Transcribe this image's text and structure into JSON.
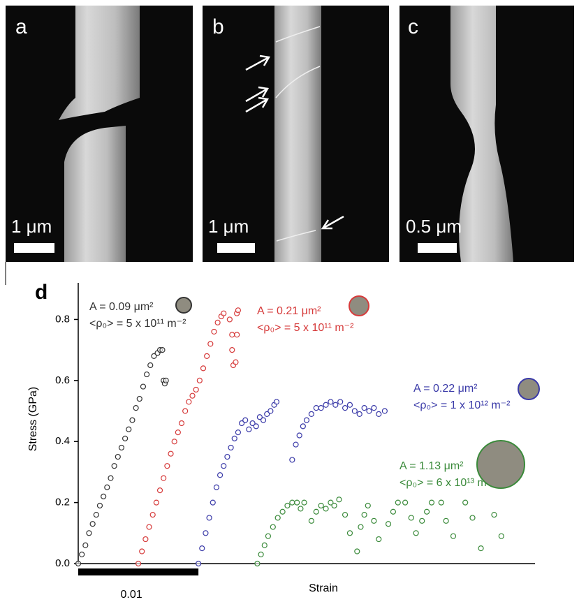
{
  "panels": [
    {
      "label": "a",
      "scale_bar": "1 μm"
    },
    {
      "label": "b",
      "scale_bar": "1 μm"
    },
    {
      "label": "c",
      "scale_bar": "0.5 μm"
    }
  ],
  "chart_data": {
    "type": "scatter",
    "panel_label": "d",
    "xlabel": "Strain",
    "ylabel": "Stress (GPa)",
    "xlim": [
      0,
      0.038
    ],
    "ylim": [
      0,
      0.92
    ],
    "yticks": [
      {
        "value": 0,
        "label": "0.0"
      },
      0.2,
      0.4,
      0.6,
      0.8
    ],
    "strain_scale_bar": 0.01,
    "series": [
      {
        "name": "A = 0.09 μm²",
        "note": "<ρ₀> = 5 x 10¹¹ m⁻²",
        "color": "#333333",
        "x": [
          0,
          0.0003,
          0.0006,
          0.0009,
          0.0012,
          0.0015,
          0.0018,
          0.0021,
          0.0024,
          0.0027,
          0.003,
          0.0033,
          0.0036,
          0.0039,
          0.0042,
          0.0045,
          0.0048,
          0.0051,
          0.0054,
          0.0057,
          0.006,
          0.0063,
          0.0066,
          0.0068,
          0.007,
          0.0071,
          0.0072,
          0.0073
        ],
        "values": [
          0,
          0.03,
          0.06,
          0.1,
          0.13,
          0.16,
          0.19,
          0.22,
          0.25,
          0.28,
          0.32,
          0.35,
          0.38,
          0.41,
          0.44,
          0.47,
          0.51,
          0.54,
          0.58,
          0.62,
          0.65,
          0.68,
          0.69,
          0.7,
          0.7,
          0.6,
          0.59,
          0.6
        ]
      },
      {
        "name": "A = 0.21 μm²",
        "note": "<ρ₀> = 5 x 10¹¹ m⁻²",
        "color": "#d63a3a",
        "x": [
          0.005,
          0.0053,
          0.0056,
          0.0059,
          0.0062,
          0.0065,
          0.0068,
          0.0071,
          0.0074,
          0.0077,
          0.008,
          0.0083,
          0.0086,
          0.0089,
          0.0092,
          0.0095,
          0.0098,
          0.0101,
          0.0104,
          0.0107,
          0.011,
          0.0113,
          0.0116,
          0.0119,
          0.0121,
          0.0126,
          0.0128,
          0.0128,
          0.0129,
          0.0132,
          0.0133,
          0.0132,
          0.0131
        ],
        "values": [
          0,
          0.04,
          0.08,
          0.12,
          0.16,
          0.2,
          0.24,
          0.28,
          0.32,
          0.36,
          0.4,
          0.43,
          0.46,
          0.5,
          0.53,
          0.55,
          0.57,
          0.6,
          0.64,
          0.68,
          0.72,
          0.76,
          0.79,
          0.81,
          0.82,
          0.8,
          0.75,
          0.7,
          0.65,
          0.82,
          0.83,
          0.75,
          0.66
        ]
      },
      {
        "name": "A = 0.22 μm²",
        "note": "<ρ₀> = 1 x 10¹² m⁻²",
        "color": "#3a3aa8",
        "x": [
          0.01,
          0.0103,
          0.0106,
          0.0109,
          0.0112,
          0.0115,
          0.0118,
          0.0121,
          0.0124,
          0.0127,
          0.013,
          0.0133,
          0.0136,
          0.0139,
          0.0142,
          0.0145,
          0.0148,
          0.0151,
          0.0154,
          0.0157,
          0.016,
          0.0163,
          0.0165,
          0.0178,
          0.0181,
          0.0184,
          0.0187,
          0.019,
          0.0194,
          0.0198,
          0.0202,
          0.0206,
          0.021,
          0.0214,
          0.0218,
          0.0222,
          0.0226,
          0.023,
          0.0234,
          0.0238,
          0.0242,
          0.0246,
          0.025,
          0.0255
        ],
        "values": [
          0,
          0.05,
          0.1,
          0.15,
          0.2,
          0.25,
          0.29,
          0.32,
          0.35,
          0.38,
          0.41,
          0.43,
          0.46,
          0.47,
          0.44,
          0.46,
          0.45,
          0.48,
          0.47,
          0.49,
          0.5,
          0.52,
          0.53,
          0.34,
          0.39,
          0.42,
          0.45,
          0.47,
          0.49,
          0.51,
          0.51,
          0.52,
          0.53,
          0.52,
          0.53,
          0.51,
          0.52,
          0.5,
          0.49,
          0.51,
          0.5,
          0.51,
          0.49,
          0.5
        ]
      },
      {
        "name": "A = 1.13 μm²",
        "note": "<ρ₀> = 6 x 10¹³ m⁻²",
        "color": "#3a8a3a",
        "x": [
          0.0149,
          0.0152,
          0.0155,
          0.0158,
          0.0162,
          0.0166,
          0.017,
          0.0174,
          0.0178,
          0.0182,
          0.0185,
          0.0188,
          0.0194,
          0.0198,
          0.0202,
          0.0206,
          0.021,
          0.0213,
          0.0217,
          0.0222,
          0.0226,
          0.0232,
          0.0235,
          0.0238,
          0.0241,
          0.0246,
          0.025,
          0.0258,
          0.0262,
          0.0266,
          0.0272,
          0.0277,
          0.0281,
          0.0286,
          0.029,
          0.0294,
          0.0302,
          0.0306,
          0.0312,
          0.0322,
          0.0328,
          0.0335,
          0.0346,
          0.0352
        ],
        "values": [
          0,
          0.03,
          0.06,
          0.09,
          0.12,
          0.15,
          0.17,
          0.19,
          0.2,
          0.2,
          0.18,
          0.2,
          0.14,
          0.17,
          0.19,
          0.18,
          0.2,
          0.19,
          0.21,
          0.16,
          0.1,
          0.04,
          0.12,
          0.16,
          0.19,
          0.14,
          0.08,
          0.13,
          0.17,
          0.2,
          0.2,
          0.15,
          0.1,
          0.14,
          0.17,
          0.2,
          0.2,
          0.14,
          0.09,
          0.2,
          0.15,
          0.05,
          0.16,
          0.09
        ]
      }
    ]
  }
}
